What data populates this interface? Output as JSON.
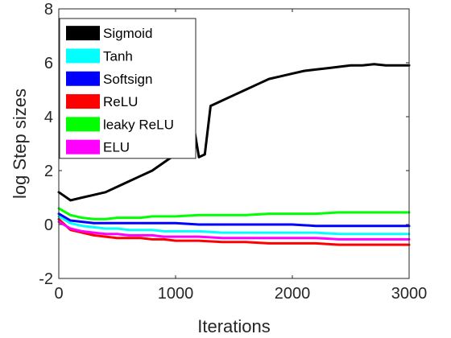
{
  "chart_data": {
    "type": "line",
    "title": "",
    "xlabel": "Iterations",
    "ylabel": "log Step sizes",
    "xlim": [
      0,
      3000
    ],
    "ylim": [
      -2,
      8
    ],
    "xticks": [
      0,
      1000,
      2000,
      3000
    ],
    "yticks": [
      -2,
      0,
      2,
      4,
      6,
      8
    ],
    "xtick_labels": [
      "0",
      "1000",
      "2000",
      "3000"
    ],
    "ytick_labels": [
      "-2",
      "0",
      "2",
      "4",
      "6",
      "8"
    ],
    "grid": false,
    "legend_position": "top-left",
    "series": [
      {
        "name": "Sigmoid",
        "color": "#000000",
        "x": [
          0,
          100,
          200,
          300,
          400,
          500,
          600,
          700,
          800,
          900,
          1000,
          1100,
          1150,
          1200,
          1250,
          1300,
          1400,
          1500,
          1600,
          1700,
          1800,
          1900,
          2000,
          2100,
          2200,
          2300,
          2400,
          2500,
          2600,
          2700,
          2800,
          2900,
          3000
        ],
        "y": [
          1.2,
          0.9,
          1.0,
          1.1,
          1.2,
          1.4,
          1.6,
          1.8,
          2.0,
          2.3,
          2.6,
          2.9,
          3.8,
          2.5,
          2.6,
          4.4,
          4.6,
          4.8,
          5.0,
          5.2,
          5.4,
          5.5,
          5.6,
          5.7,
          5.75,
          5.8,
          5.85,
          5.9,
          5.9,
          5.95,
          5.9,
          5.9,
          5.9
        ]
      },
      {
        "name": "Tanh",
        "color": "#00ffff",
        "x": [
          0,
          100,
          200,
          300,
          400,
          500,
          600,
          700,
          800,
          900,
          1000,
          1200,
          1400,
          1600,
          1800,
          2000,
          2200,
          2400,
          2600,
          2800,
          3000
        ],
        "y": [
          0.3,
          0.05,
          -0.05,
          -0.1,
          -0.15,
          -0.15,
          -0.2,
          -0.2,
          -0.2,
          -0.25,
          -0.25,
          -0.25,
          -0.3,
          -0.3,
          -0.3,
          -0.3,
          -0.3,
          -0.35,
          -0.35,
          -0.35,
          -0.35
        ]
      },
      {
        "name": "Softsign",
        "color": "#0000ff",
        "x": [
          0,
          100,
          200,
          300,
          400,
          500,
          600,
          700,
          800,
          900,
          1000,
          1200,
          1400,
          1600,
          1800,
          2000,
          2200,
          2400,
          2600,
          2800,
          3000
        ],
        "y": [
          0.4,
          0.15,
          0.1,
          0.05,
          0.05,
          0.05,
          0.05,
          0.05,
          0.05,
          0.05,
          0.05,
          0.0,
          0.0,
          0.0,
          0.0,
          0.0,
          -0.05,
          -0.05,
          -0.05,
          -0.05,
          -0.05
        ]
      },
      {
        "name": "ReLU",
        "color": "#ff0000",
        "x": [
          0,
          100,
          200,
          300,
          400,
          500,
          600,
          700,
          800,
          900,
          1000,
          1200,
          1400,
          1600,
          1800,
          2000,
          2200,
          2400,
          2600,
          2800,
          3000
        ],
        "y": [
          0.2,
          -0.2,
          -0.3,
          -0.4,
          -0.45,
          -0.5,
          -0.5,
          -0.5,
          -0.55,
          -0.55,
          -0.6,
          -0.6,
          -0.65,
          -0.65,
          -0.7,
          -0.7,
          -0.7,
          -0.75,
          -0.75,
          -0.75,
          -0.75
        ]
      },
      {
        "name": "leaky ReLU",
        "color": "#00ff00",
        "x": [
          0,
          100,
          200,
          300,
          400,
          500,
          600,
          700,
          800,
          900,
          1000,
          1200,
          1400,
          1600,
          1800,
          2000,
          2200,
          2400,
          2600,
          2800,
          3000
        ],
        "y": [
          0.6,
          0.35,
          0.25,
          0.2,
          0.2,
          0.25,
          0.25,
          0.25,
          0.3,
          0.3,
          0.3,
          0.35,
          0.35,
          0.35,
          0.4,
          0.4,
          0.4,
          0.45,
          0.45,
          0.45,
          0.45
        ]
      },
      {
        "name": "ELU",
        "color": "#ff00ff",
        "x": [
          0,
          100,
          200,
          300,
          400,
          500,
          600,
          700,
          800,
          900,
          1000,
          1200,
          1400,
          1600,
          1800,
          2000,
          2200,
          2400,
          2600,
          2800,
          3000
        ],
        "y": [
          0.1,
          -0.15,
          -0.25,
          -0.3,
          -0.35,
          -0.35,
          -0.4,
          -0.4,
          -0.4,
          -0.45,
          -0.45,
          -0.45,
          -0.5,
          -0.5,
          -0.5,
          -0.5,
          -0.5,
          -0.55,
          -0.55,
          -0.55,
          -0.55
        ]
      }
    ]
  }
}
